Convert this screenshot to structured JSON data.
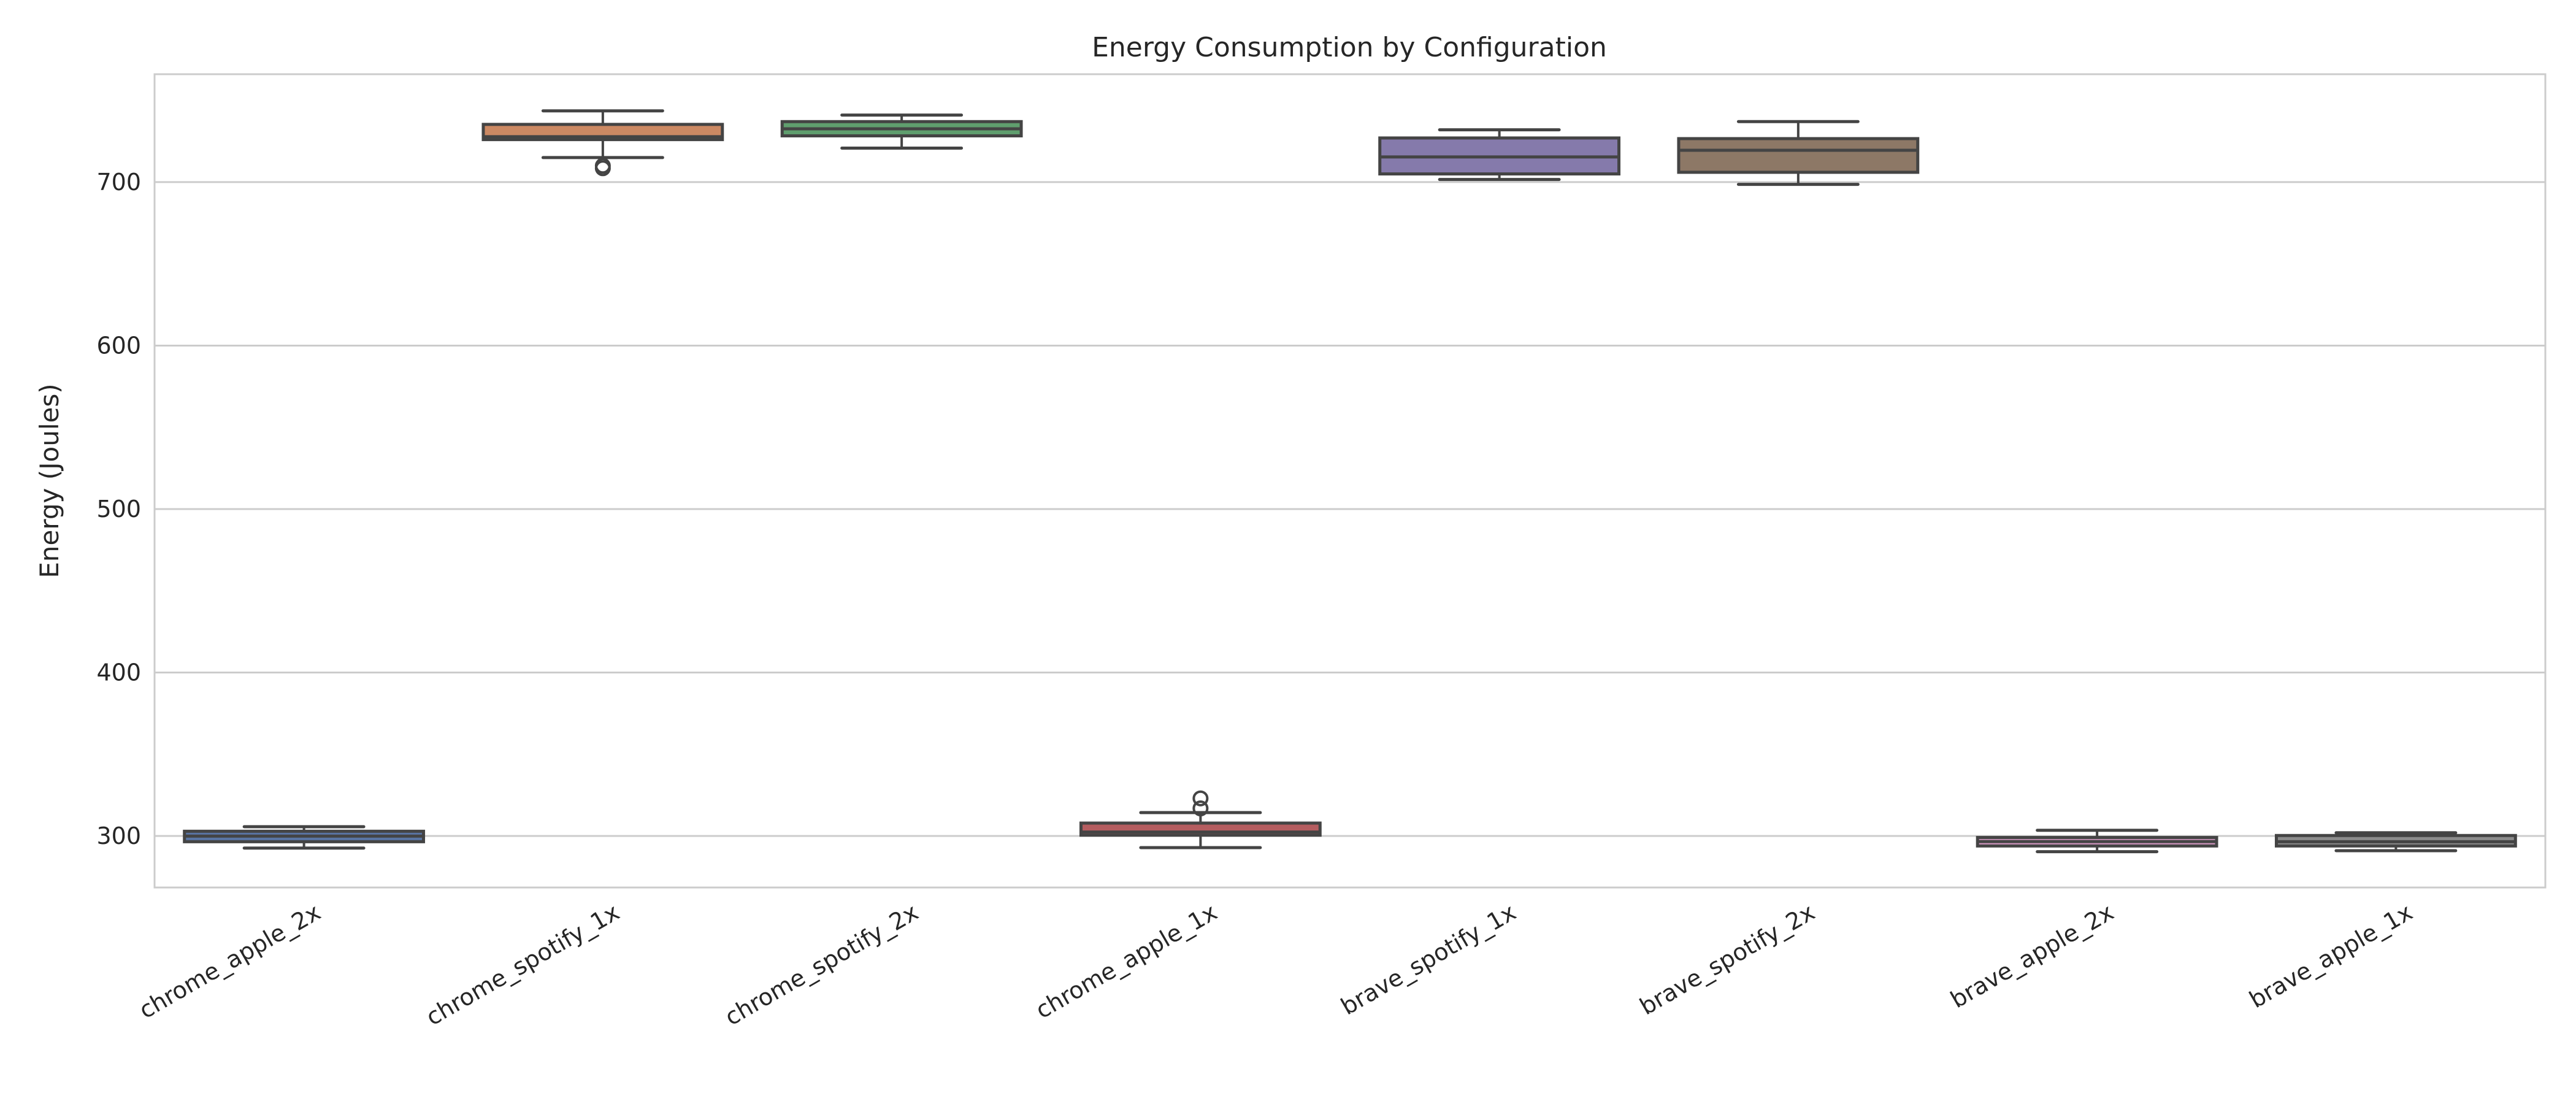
{
  "chart_data": {
    "type": "box",
    "title": "Energy Consumption by Configuration",
    "xlabel": "",
    "ylabel": "Energy (Joules)",
    "ylim": [
      268.5,
      766
    ],
    "yticks": [
      300,
      400,
      500,
      600,
      700
    ],
    "grid": "horizontal",
    "categories": [
      "chrome_apple_2x",
      "chrome_spotify_1x",
      "chrome_spotify_2x",
      "chrome_apple_1x",
      "brave_spotify_1x",
      "brave_spotify_2x",
      "brave_apple_2x",
      "brave_apple_1x"
    ],
    "colors": [
      "#5975a4",
      "#cc8963",
      "#5f9e6e",
      "#b55d60",
      "#857aab",
      "#8d7866",
      "#d095bf",
      "#8c8c8c"
    ],
    "boxes": [
      {
        "whisker_low": 292.6,
        "q1": 296.5,
        "median": 299.9,
        "q3": 302.9,
        "whisker_high": 305.7,
        "outliers": []
      },
      {
        "whisker_low": 715.0,
        "q1": 726.0,
        "median": 727.8,
        "q3": 735.3,
        "whisker_high": 743.6,
        "outliers": [
          708.5,
          710.0
        ]
      },
      {
        "whisker_low": 720.8,
        "q1": 728.3,
        "median": 732.6,
        "q3": 737.0,
        "whisker_high": 741.0,
        "outliers": []
      },
      {
        "whisker_low": 292.9,
        "q1": 300.5,
        "median": 302.4,
        "q3": 307.9,
        "whisker_high": 314.3,
        "outliers": [
          316.9,
          323.0
        ]
      },
      {
        "whisker_low": 701.6,
        "q1": 705.0,
        "median": 715.4,
        "q3": 727.0,
        "whisker_high": 732.0,
        "outliers": []
      },
      {
        "whisker_low": 698.6,
        "q1": 706.0,
        "median": 719.5,
        "q3": 726.6,
        "whisker_high": 737.0,
        "outliers": []
      },
      {
        "whisker_low": 290.4,
        "q1": 293.9,
        "median": 296.6,
        "q3": 299.1,
        "whisker_high": 303.5,
        "outliers": []
      },
      {
        "whisker_low": 291.0,
        "q1": 293.9,
        "median": 296.5,
        "q3": 300.3,
        "whisker_high": 302.0,
        "outliers": []
      }
    ]
  }
}
